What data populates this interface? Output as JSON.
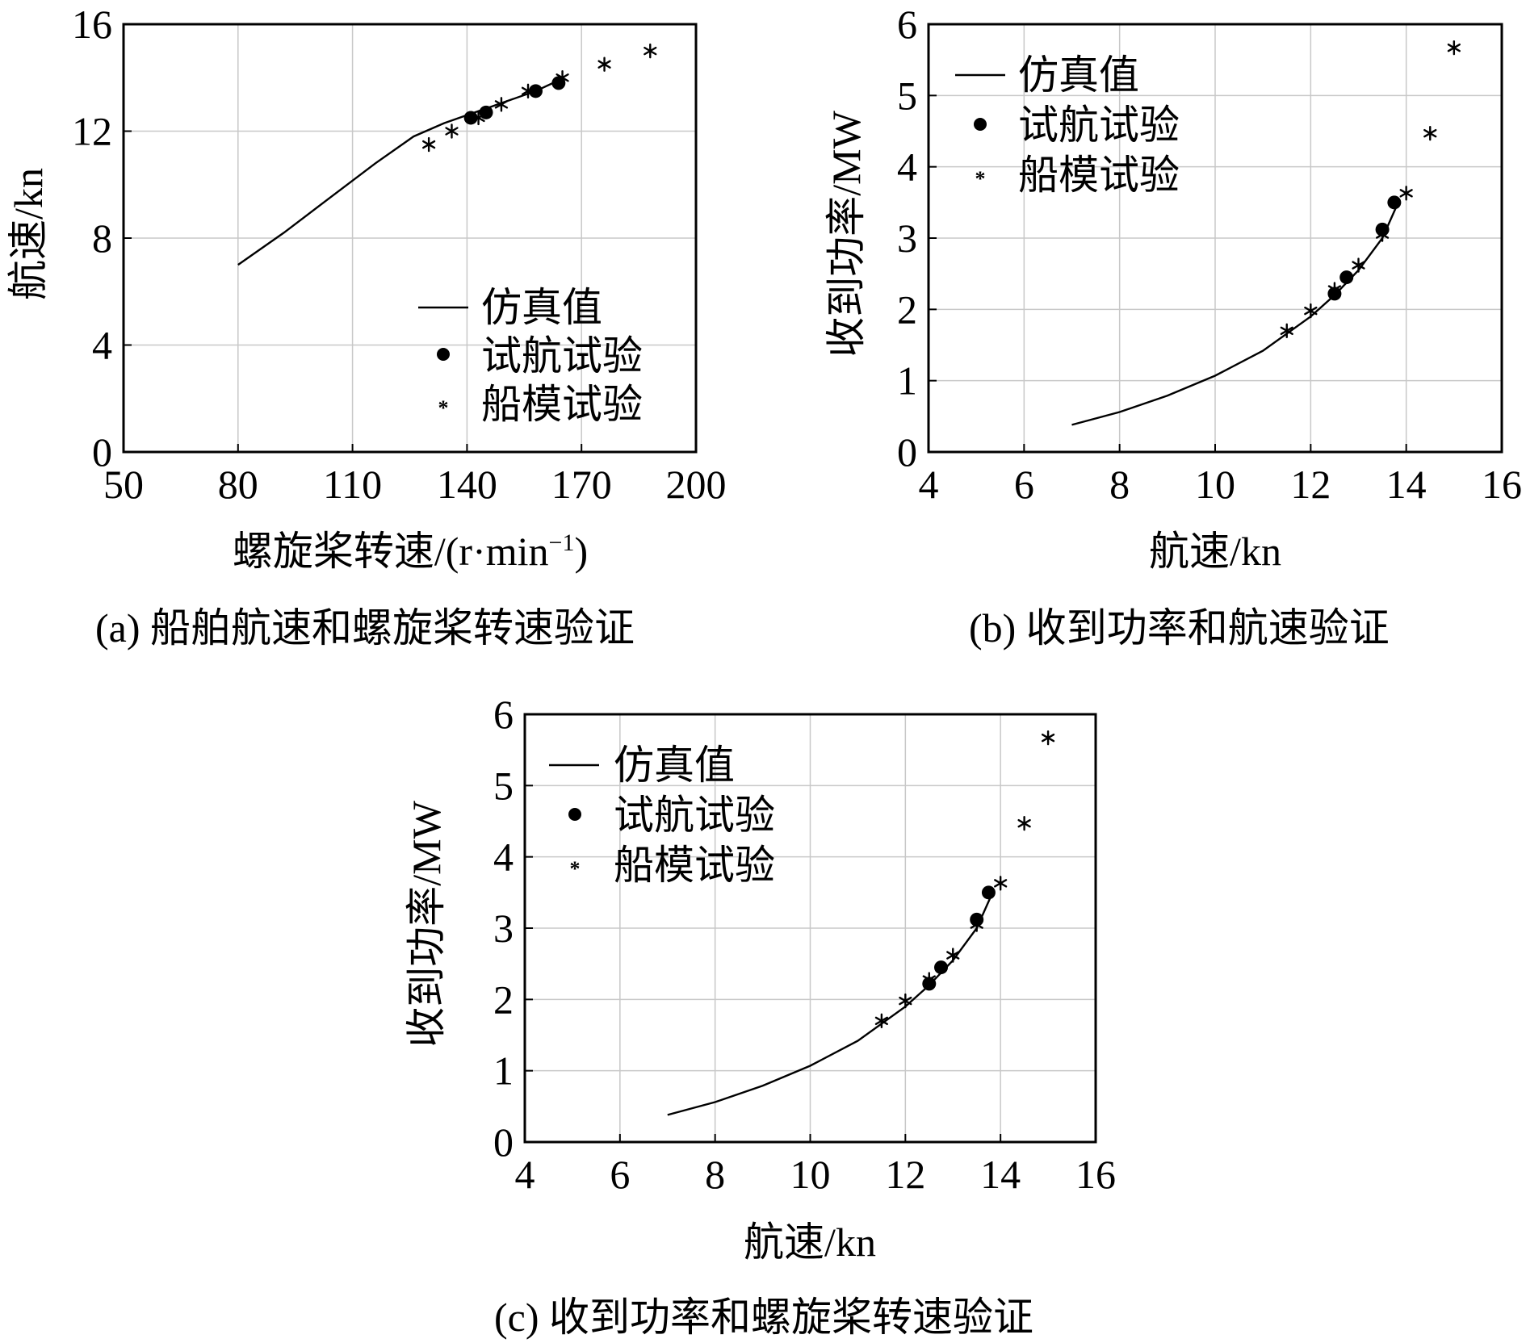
{
  "legend": {
    "sim": "仿真值",
    "trial": "试航试验",
    "model": "船模试验"
  },
  "charts": {
    "a": {
      "caption": "(a) 船舶航速和螺旋桨转速验证",
      "xlabel": "螺旋桨转速/(r·min",
      "xlabel_sup": "−1",
      "xlabel_tail": ")",
      "ylabel": "航速/kn"
    },
    "b": {
      "caption": "(b) 收到功率和航速验证",
      "xlabel": "航速/kn",
      "ylabel": "收到功率/MW"
    },
    "c": {
      "caption": "(c) 收到功率和螺旋桨转速验证",
      "xlabel": "航速/kn",
      "ylabel": "收到功率/MW"
    }
  },
  "chart_data": [
    {
      "id": "a",
      "type": "line",
      "xlabel": "螺旋桨转速/(r·min⁻¹)",
      "ylabel": "航速/kn",
      "xlim": [
        50,
        200
      ],
      "ylim": [
        0,
        16
      ],
      "xticks": [
        50,
        80,
        110,
        140,
        170,
        200
      ],
      "yticks": [
        0,
        4,
        8,
        12,
        16
      ],
      "grid": true,
      "legend_position": "bottom-right",
      "series": [
        {
          "name": "仿真值",
          "kind": "line",
          "x": [
            80,
            92,
            104,
            116,
            126,
            134,
            140,
            146,
            152,
            158,
            164
          ],
          "y": [
            7.0,
            8.2,
            9.5,
            10.8,
            11.8,
            12.3,
            12.6,
            12.9,
            13.2,
            13.5,
            13.9
          ]
        },
        {
          "name": "试航试验",
          "kind": "dot",
          "x": [
            141,
            145,
            158,
            164
          ],
          "y": [
            12.5,
            12.7,
            13.5,
            13.8
          ]
        },
        {
          "name": "船模试验",
          "kind": "star",
          "x": [
            130,
            136,
            143,
            149,
            156,
            165,
            176,
            188
          ],
          "y": [
            11.5,
            12.0,
            12.5,
            13.0,
            13.5,
            14.0,
            14.5,
            15.0
          ]
        }
      ]
    },
    {
      "id": "b",
      "type": "line",
      "xlabel": "航速/kn",
      "ylabel": "收到功率/MW",
      "xlim": [
        4,
        16
      ],
      "ylim": [
        0,
        6
      ],
      "xticks": [
        4,
        6,
        8,
        10,
        12,
        14,
        16
      ],
      "yticks": [
        0,
        1,
        2,
        3,
        4,
        5,
        6
      ],
      "grid": true,
      "legend_position": "top-left",
      "series": [
        {
          "name": "仿真值",
          "kind": "line",
          "x": [
            7,
            8,
            9,
            10,
            11,
            12,
            12.5,
            13,
            13.5,
            13.8
          ],
          "y": [
            0.38,
            0.56,
            0.79,
            1.07,
            1.42,
            1.9,
            2.2,
            2.55,
            3.0,
            3.45
          ]
        },
        {
          "name": "试航试验",
          "kind": "dot",
          "x": [
            12.5,
            12.75,
            13.5,
            13.75
          ],
          "y": [
            2.22,
            2.45,
            3.12,
            3.5
          ]
        },
        {
          "name": "船模试验",
          "kind": "star",
          "x": [
            11.5,
            12,
            12.5,
            13,
            13.5,
            14,
            14.5,
            15
          ],
          "y": [
            1.7,
            1.98,
            2.28,
            2.62,
            3.05,
            3.63,
            4.47,
            5.67
          ]
        }
      ]
    },
    {
      "id": "c",
      "type": "line",
      "xlabel": "航速/kn",
      "ylabel": "收到功率/MW",
      "xlim": [
        4,
        16
      ],
      "ylim": [
        0,
        6
      ],
      "xticks": [
        4,
        6,
        8,
        10,
        12,
        14,
        16
      ],
      "yticks": [
        0,
        1,
        2,
        3,
        4,
        5,
        6
      ],
      "grid": true,
      "legend_position": "top-left",
      "series": [
        {
          "name": "仿真值",
          "kind": "line",
          "x": [
            7,
            8,
            9,
            10,
            11,
            12,
            12.5,
            13,
            13.5,
            13.8
          ],
          "y": [
            0.38,
            0.56,
            0.79,
            1.07,
            1.42,
            1.9,
            2.2,
            2.55,
            3.0,
            3.45
          ]
        },
        {
          "name": "试航试验",
          "kind": "dot",
          "x": [
            12.5,
            12.75,
            13.5,
            13.75
          ],
          "y": [
            2.22,
            2.45,
            3.12,
            3.5
          ]
        },
        {
          "name": "船模试验",
          "kind": "star",
          "x": [
            11.5,
            12,
            12.5,
            13,
            13.5,
            14,
            14.5,
            15
          ],
          "y": [
            1.7,
            1.98,
            2.28,
            2.62,
            3.05,
            3.63,
            4.47,
            5.67
          ]
        }
      ]
    }
  ]
}
